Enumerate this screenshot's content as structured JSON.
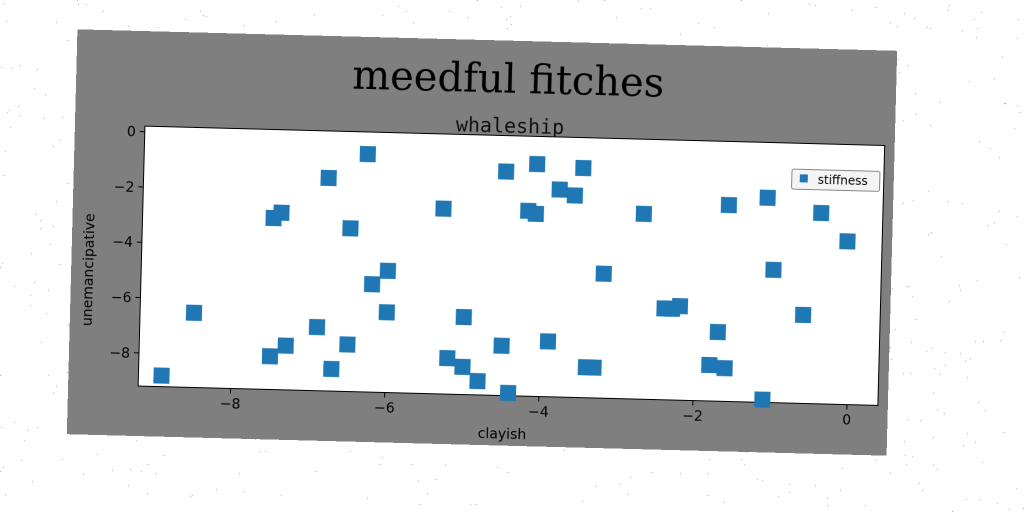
{
  "chart_data": {
    "type": "scatter",
    "title": "meedful fitches",
    "subtitle": "whaleship",
    "xlabel": "clayish",
    "ylabel": "unemancipative",
    "xlim": [
      -9.2,
      0.4
    ],
    "ylim": [
      -9.2,
      0.2
    ],
    "x_ticks": [
      -8,
      -6,
      -4,
      -2,
      0
    ],
    "y_ticks": [
      0,
      -2,
      -4,
      -6,
      -8
    ],
    "x_tick_labels": [
      "−8",
      "−6",
      "−4",
      "−2",
      "0"
    ],
    "y_tick_labels": [
      "0",
      "−2",
      "−4",
      "−6",
      "−8"
    ],
    "grid": false,
    "legend": {
      "position": "top-right",
      "entries": [
        "stiffness"
      ]
    },
    "series": [
      {
        "name": "stiffness",
        "color": "#1f77b4",
        "marker": "square",
        "points": [
          [
            -6.3,
            -0.6
          ],
          [
            -6.8,
            -1.5
          ],
          [
            -7.5,
            -3.0
          ],
          [
            -7.4,
            -2.8
          ],
          [
            -6.5,
            -3.3
          ],
          [
            -8.9,
            -8.8
          ],
          [
            -8.5,
            -6.5
          ],
          [
            -7.5,
            -8.0
          ],
          [
            -7.3,
            -7.6
          ],
          [
            -6.9,
            -6.9
          ],
          [
            -6.7,
            -8.4
          ],
          [
            -6.5,
            -7.5
          ],
          [
            -6.2,
            -5.3
          ],
          [
            -6.0,
            -4.8
          ],
          [
            -6.0,
            -6.3
          ],
          [
            -5.3,
            -2.5
          ],
          [
            -5.2,
            -7.9
          ],
          [
            -5.0,
            -8.2
          ],
          [
            -5.0,
            -6.4
          ],
          [
            -4.8,
            -8.7
          ],
          [
            -4.5,
            -7.4
          ],
          [
            -4.4,
            -9.1
          ],
          [
            -4.5,
            -1.1
          ],
          [
            -4.2,
            -2.5
          ],
          [
            -4.1,
            -2.6
          ],
          [
            -4.1,
            -0.8
          ],
          [
            -3.9,
            -7.2
          ],
          [
            -3.8,
            -1.7
          ],
          [
            -3.6,
            -1.9
          ],
          [
            -3.5,
            -0.9
          ],
          [
            -3.4,
            -8.1
          ],
          [
            -3.3,
            -8.1
          ],
          [
            -3.2,
            -4.7
          ],
          [
            -2.7,
            -2.5
          ],
          [
            -2.4,
            -5.9
          ],
          [
            -2.3,
            -5.9
          ],
          [
            -2.2,
            -5.8
          ],
          [
            -1.8,
            -7.9
          ],
          [
            -1.7,
            -6.7
          ],
          [
            -1.6,
            -8.0
          ],
          [
            -1.6,
            -2.1
          ],
          [
            -1.1,
            -1.8
          ],
          [
            -1.1,
            -9.1
          ],
          [
            -1.0,
            -4.4
          ],
          [
            -0.6,
            -6.0
          ],
          [
            -0.4,
            -2.3
          ],
          [
            -0.05,
            -3.3
          ]
        ]
      }
    ]
  }
}
